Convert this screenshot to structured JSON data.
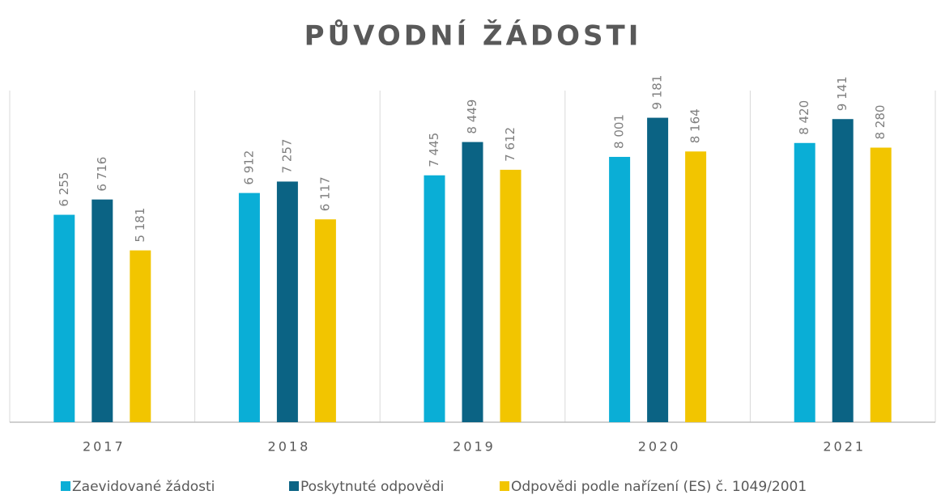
{
  "chart_data": {
    "type": "bar",
    "title": "PŮVODNÍ ŽÁDOSTI",
    "categories": [
      "2017",
      "2018",
      "2019",
      "2020",
      "2021"
    ],
    "series": [
      {
        "name": "Zaevidované žádosti",
        "color": "#0aaed6",
        "values": [
          6255,
          6912,
          7445,
          8001,
          8420
        ],
        "value_labels": [
          "6 255",
          "6 912",
          "7 445",
          "8 001",
          "8 420"
        ]
      },
      {
        "name": "Poskytnuté odpovědi",
        "color": "#0b6384",
        "values": [
          6716,
          7257,
          8449,
          9181,
          9141
        ],
        "value_labels": [
          "6 716",
          "7 257",
          "8 449",
          "9 181",
          "9 141"
        ]
      },
      {
        "name": "Odpovědi podle nařízení (ES) č. 1049/2001",
        "color": "#f2c500",
        "values": [
          5181,
          6117,
          7612,
          8164,
          8280
        ],
        "value_labels": [
          "5 181",
          "6 117",
          "7 612",
          "8 164",
          "8 280"
        ]
      }
    ],
    "ylim": [
      0,
      10000
    ],
    "legend": "bottom"
  }
}
